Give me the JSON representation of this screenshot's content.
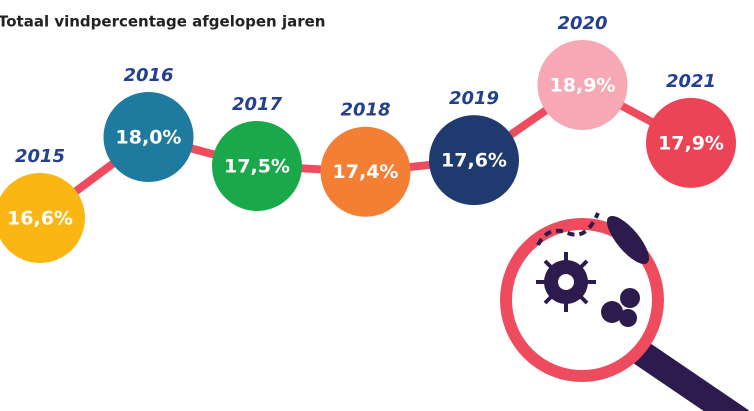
{
  "chart_data": {
    "type": "bubble-line",
    "title": "Totaal vindpercentage afgelopen jaren",
    "categories": [
      "2015",
      "2016",
      "2017",
      "2018",
      "2019",
      "2020",
      "2021"
    ],
    "values": [
      16.6,
      18.0,
      17.5,
      17.4,
      17.6,
      18.9,
      17.9
    ],
    "value_labels": [
      "16,6%",
      "18,0%",
      "17,5%",
      "17,4%",
      "17,6%",
      "18,9%",
      "17,9%"
    ],
    "colors": [
      "#fbb614",
      "#1f7aa0",
      "#1aa84a",
      "#f37f35",
      "#1f3a6e",
      "#f6a8b4",
      "#ec4356"
    ],
    "line_color": "#ee4c5e"
  }
}
